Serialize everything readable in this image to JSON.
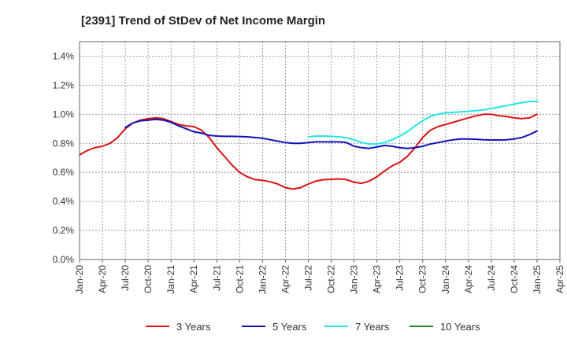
{
  "chart_data": {
    "type": "line",
    "title": "[2391]  Trend of StDev of Net Income Margin",
    "xlabel": "",
    "ylabel": "",
    "ylim": [
      0,
      1.5
    ],
    "y_ticks": [
      "0.0%",
      "0.2%",
      "0.4%",
      "0.6%",
      "0.8%",
      "1.0%",
      "1.2%",
      "1.4%"
    ],
    "y_tick_values": [
      0,
      0.2,
      0.4,
      0.6,
      0.8,
      1.0,
      1.2,
      1.4
    ],
    "x_ticks": [
      "Jan-20",
      "Apr-20",
      "Jul-20",
      "Oct-20",
      "Jan-21",
      "Apr-21",
      "Jul-21",
      "Oct-21",
      "Jan-22",
      "Apr-22",
      "Jul-22",
      "Oct-22",
      "Jan-23",
      "Apr-23",
      "Jul-23",
      "Oct-23",
      "Jan-24",
      "Apr-24",
      "Jul-24",
      "Oct-24",
      "Jan-25",
      "Apr-25"
    ],
    "grid": true,
    "legend_position": "bottom",
    "series": [
      {
        "name": "3 Years",
        "color": "#dd1111",
        "x": [
          "2020-01",
          "2020-02",
          "2020-03",
          "2020-04",
          "2020-05",
          "2020-06",
          "2020-07",
          "2020-08",
          "2020-09",
          "2020-10",
          "2020-11",
          "2020-12",
          "2021-01",
          "2021-02",
          "2021-03",
          "2021-04",
          "2021-05",
          "2021-06",
          "2021-07",
          "2021-08",
          "2021-09",
          "2021-10",
          "2021-11",
          "2021-12",
          "2022-01",
          "2022-02",
          "2022-03",
          "2022-04",
          "2022-05",
          "2022-06",
          "2022-07",
          "2022-08",
          "2022-09",
          "2022-10",
          "2022-11",
          "2022-12",
          "2023-01",
          "2023-02",
          "2023-03",
          "2023-04",
          "2023-05",
          "2023-06",
          "2023-07",
          "2023-08",
          "2023-09",
          "2023-10",
          "2023-11",
          "2023-12",
          "2024-01",
          "2024-02",
          "2024-03",
          "2024-04",
          "2024-05",
          "2024-06",
          "2024-07",
          "2024-08",
          "2024-09",
          "2024-10",
          "2024-11",
          "2024-12",
          "2025-01"
        ],
        "values": [
          0.72,
          0.75,
          0.77,
          0.78,
          0.8,
          0.84,
          0.9,
          0.94,
          0.96,
          0.97,
          0.975,
          0.97,
          0.95,
          0.93,
          0.92,
          0.915,
          0.89,
          0.84,
          0.77,
          0.71,
          0.65,
          0.6,
          0.57,
          0.55,
          0.545,
          0.535,
          0.52,
          0.495,
          0.485,
          0.495,
          0.52,
          0.54,
          0.55,
          0.552,
          0.555,
          0.55,
          0.532,
          0.525,
          0.54,
          0.57,
          0.61,
          0.645,
          0.67,
          0.71,
          0.77,
          0.84,
          0.89,
          0.915,
          0.93,
          0.945,
          0.96,
          0.975,
          0.99,
          1.0,
          1.0,
          0.99,
          0.985,
          0.975,
          0.97,
          0.975,
          1.0
        ]
      },
      {
        "name": "5 Years",
        "color": "#1111bb",
        "x": [
          "2020-07",
          "2020-08",
          "2020-09",
          "2020-10",
          "2020-11",
          "2020-12",
          "2021-01",
          "2021-02",
          "2021-03",
          "2021-04",
          "2021-05",
          "2021-06",
          "2021-07",
          "2021-08",
          "2021-09",
          "2021-10",
          "2021-11",
          "2021-12",
          "2022-01",
          "2022-02",
          "2022-03",
          "2022-04",
          "2022-05",
          "2022-06",
          "2022-07",
          "2022-08",
          "2022-09",
          "2022-10",
          "2022-11",
          "2022-12",
          "2023-01",
          "2023-02",
          "2023-03",
          "2023-04",
          "2023-05",
          "2023-06",
          "2023-07",
          "2023-08",
          "2023-09",
          "2023-10",
          "2023-11",
          "2023-12",
          "2024-01",
          "2024-02",
          "2024-03",
          "2024-04",
          "2024-05",
          "2024-06",
          "2024-07",
          "2024-08",
          "2024-09",
          "2024-10",
          "2024-11",
          "2024-12",
          "2025-01"
        ],
        "values": [
          0.91,
          0.94,
          0.955,
          0.96,
          0.965,
          0.96,
          0.945,
          0.92,
          0.9,
          0.88,
          0.87,
          0.855,
          0.85,
          0.848,
          0.848,
          0.847,
          0.845,
          0.84,
          0.835,
          0.825,
          0.815,
          0.805,
          0.8,
          0.8,
          0.805,
          0.81,
          0.81,
          0.81,
          0.81,
          0.805,
          0.78,
          0.77,
          0.765,
          0.775,
          0.785,
          0.78,
          0.77,
          0.765,
          0.77,
          0.78,
          0.795,
          0.805,
          0.815,
          0.825,
          0.83,
          0.83,
          0.828,
          0.825,
          0.823,
          0.823,
          0.825,
          0.83,
          0.84,
          0.86,
          0.885
        ]
      },
      {
        "name": "7 Years",
        "color": "#22e6e6",
        "x": [
          "2022-07",
          "2022-08",
          "2022-09",
          "2022-10",
          "2022-11",
          "2022-12",
          "2023-01",
          "2023-02",
          "2023-03",
          "2023-04",
          "2023-05",
          "2023-06",
          "2023-07",
          "2023-08",
          "2023-09",
          "2023-10",
          "2023-11",
          "2023-12",
          "2024-01",
          "2024-02",
          "2024-03",
          "2024-04",
          "2024-05",
          "2024-06",
          "2024-07",
          "2024-08",
          "2024-09",
          "2024-10",
          "2024-11",
          "2024-12",
          "2025-01"
        ],
        "values": [
          0.845,
          0.85,
          0.85,
          0.848,
          0.845,
          0.838,
          0.825,
          0.805,
          0.795,
          0.795,
          0.805,
          0.825,
          0.85,
          0.88,
          0.92,
          0.955,
          0.985,
          1.0,
          1.01,
          1.013,
          1.017,
          1.02,
          1.025,
          1.03,
          1.04,
          1.05,
          1.06,
          1.07,
          1.08,
          1.088,
          1.09
        ]
      },
      {
        "name": "10 Years",
        "color": "#228822",
        "x": [],
        "values": []
      }
    ]
  }
}
